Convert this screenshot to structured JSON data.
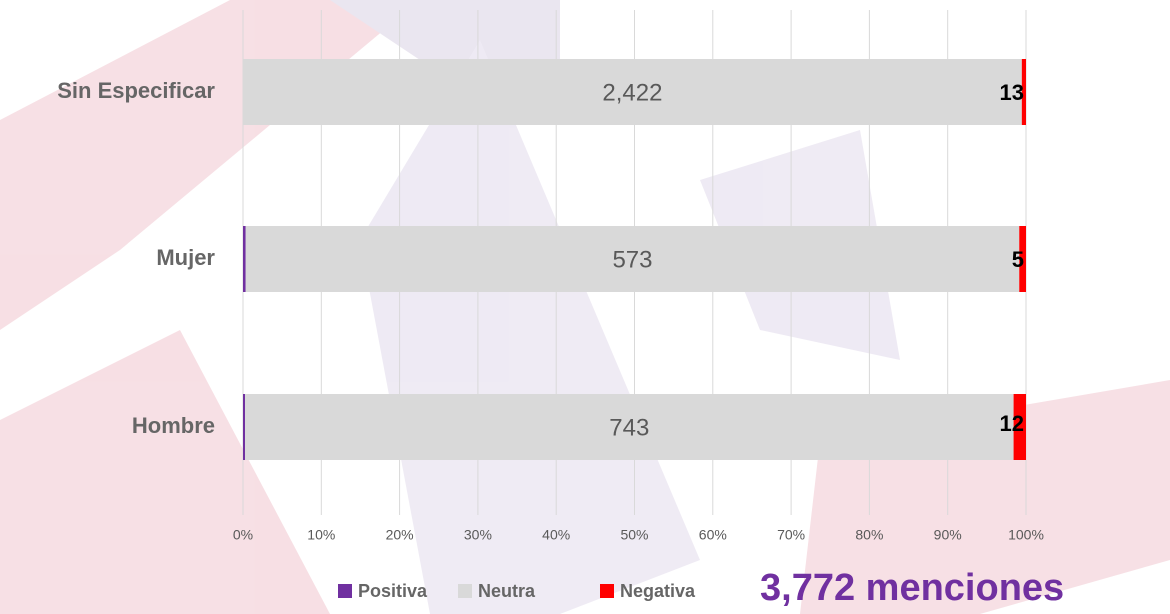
{
  "chart_data": {
    "type": "bar",
    "categories": [
      "Sin Especificar",
      "Mujer",
      "Hombre"
    ],
    "series": [
      {
        "name": "Positiva",
        "color": "#7030a0",
        "values": [
          0,
          2,
          2
        ]
      },
      {
        "name": "Neutra",
        "color": "#d9d9d9",
        "values": [
          2422,
          573,
          743
        ],
        "value_labels": [
          "2,422",
          "573",
          "743"
        ]
      },
      {
        "name": "Negativa",
        "color": "#ff0000",
        "values": [
          13,
          5,
          12
        ]
      }
    ],
    "xlim": [
      0,
      100
    ],
    "xticks": [
      {
        "value": 0,
        "label": "0%"
      },
      {
        "value": 10,
        "label": "10%"
      },
      {
        "value": 20,
        "label": "20%"
      },
      {
        "value": 30,
        "label": "30%"
      },
      {
        "value": 40,
        "label": "40%"
      },
      {
        "value": 50,
        "label": "50%"
      },
      {
        "value": 60,
        "label": "60%"
      },
      {
        "value": 70,
        "label": "70%"
      },
      {
        "value": 80,
        "label": "80%"
      },
      {
        "value": 90,
        "label": "90%"
      },
      {
        "value": 100,
        "label": "100%"
      }
    ],
    "grid": true,
    "annotation": "3,772 menciones"
  }
}
